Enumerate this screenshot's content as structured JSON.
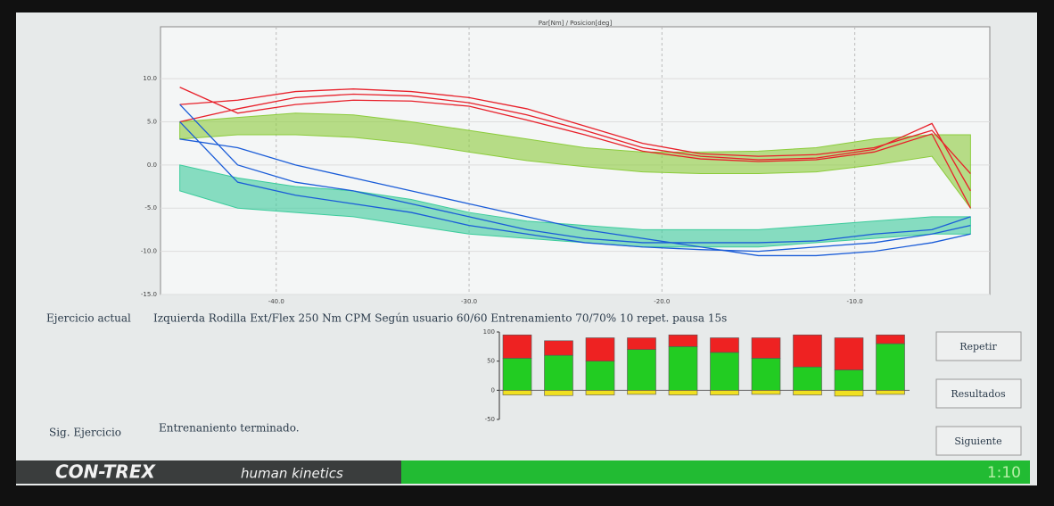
{
  "screen": {
    "current_label": "Ejercicio actual",
    "current_text": "Izquierda Rodilla Ext/Flex 250 Nm CPM Según usuario 60/60 Entrenamiento 70/70%  10 repet. pausa 15s",
    "next_label": "Sig. Ejercicio",
    "next_text": "Entrenaniento terminado.",
    "buttons": [
      "Repetir",
      "Resultados",
      "Siguiente"
    ],
    "brand": "CON-TREX",
    "brand_sub": "human kinetics",
    "timer": "1:10"
  },
  "chart_data": [
    {
      "type": "line",
      "title": "Par[Nm] / Posicion[deg]",
      "x": [
        -45,
        -42,
        -39,
        -36,
        -33,
        -30,
        -27,
        -24,
        -21,
        -18,
        -15,
        -12,
        -9,
        -6,
        -4
      ],
      "xlim": [
        -46,
        -3
      ],
      "xticks": [
        {
          "value": -40,
          "label": "-40.0"
        },
        {
          "value": -30,
          "label": "-30.0"
        },
        {
          "value": -20,
          "label": "-20.0"
        },
        {
          "value": -10,
          "label": "-10.0"
        }
      ],
      "ylim": [
        -15,
        16
      ],
      "yticks": [
        {
          "value": 10,
          "label": "10.0"
        },
        {
          "value": 5,
          "label": "5.0"
        },
        {
          "value": 0,
          "label": "0.0"
        },
        {
          "value": -5,
          "label": "-5.0"
        },
        {
          "value": -10,
          "label": "-10.0"
        },
        {
          "value": -15,
          "label": "-15.0"
        }
      ],
      "grid": true,
      "bands": [
        {
          "color": "#8ccc3c",
          "upper": [
            5,
            5.5,
            6,
            5.8,
            5,
            4,
            3,
            2,
            1.5,
            1.5,
            1.6,
            2,
            3,
            3.5,
            3.5
          ],
          "lower": [
            3,
            3.5,
            3.5,
            3.2,
            2.5,
            1.5,
            0.5,
            -0.2,
            -0.8,
            -1,
            -1,
            -0.8,
            0,
            1,
            -5
          ]
        },
        {
          "color": "#3ccc9c",
          "upper": [
            0,
            -1.5,
            -2.5,
            -3,
            -4,
            -5.5,
            -6.5,
            -7,
            -7.5,
            -7.5,
            -7.5,
            -7,
            -6.5,
            -6,
            -6
          ],
          "lower": [
            -3,
            -5,
            -5.5,
            -6,
            -7,
            -8,
            -8.5,
            -9,
            -9.5,
            -9.5,
            -9.5,
            -9,
            -8.5,
            -8,
            -8
          ]
        }
      ],
      "series": [
        {
          "color": "#e8202a",
          "values": [
            7,
            7.5,
            8.5,
            8.8,
            8.5,
            7.8,
            6.5,
            4.5,
            2.5,
            1.3,
            1.0,
            1.2,
            2.0,
            4.0,
            -1
          ]
        },
        {
          "color": "#e8202a",
          "values": [
            5,
            6.5,
            7.8,
            8.2,
            8,
            7.2,
            5.8,
            4,
            2,
            1,
            0.6,
            0.8,
            1.8,
            4.8,
            -3
          ]
        },
        {
          "color": "#e8202a",
          "values": [
            9,
            6,
            7,
            7.5,
            7.4,
            6.8,
            5.2,
            3.5,
            1.6,
            0.7,
            0.4,
            0.6,
            1.5,
            3.6,
            -5
          ]
        },
        {
          "color": "#1a5cd8",
          "values": [
            7,
            0,
            -2,
            -3,
            -4.5,
            -6,
            -7.5,
            -8.5,
            -9,
            -9,
            -9,
            -8.8,
            -8,
            -7.5,
            -6
          ]
        },
        {
          "color": "#1a5cd8",
          "values": [
            5,
            -2,
            -3.5,
            -4.5,
            -5.5,
            -7,
            -8,
            -9,
            -9.5,
            -9.8,
            -10,
            -9.5,
            -9,
            -8,
            -7
          ]
        },
        {
          "color": "#1a5cd8",
          "values": [
            3,
            2,
            0,
            -1.5,
            -3,
            -4.5,
            -6,
            -7.5,
            -8.5,
            -9.5,
            -10.5,
            -10.5,
            -10,
            -9,
            -8
          ]
        }
      ]
    },
    {
      "type": "stacked_bar",
      "ylim": [
        -50,
        100
      ],
      "yticks": [
        100,
        50,
        0,
        -50
      ],
      "series": [
        {
          "color": "#f0e020",
          "values": [
            -8,
            -9,
            -8,
            -7,
            -8,
            -8,
            -7,
            -8,
            -10,
            -7
          ]
        },
        {
          "color": "#22cc22",
          "values": [
            55,
            60,
            50,
            70,
            75,
            65,
            55,
            40,
            35,
            80
          ]
        },
        {
          "color": "#ee2222",
          "values": [
            40,
            25,
            40,
            20,
            20,
            25,
            35,
            55,
            55,
            15
          ]
        }
      ]
    }
  ]
}
